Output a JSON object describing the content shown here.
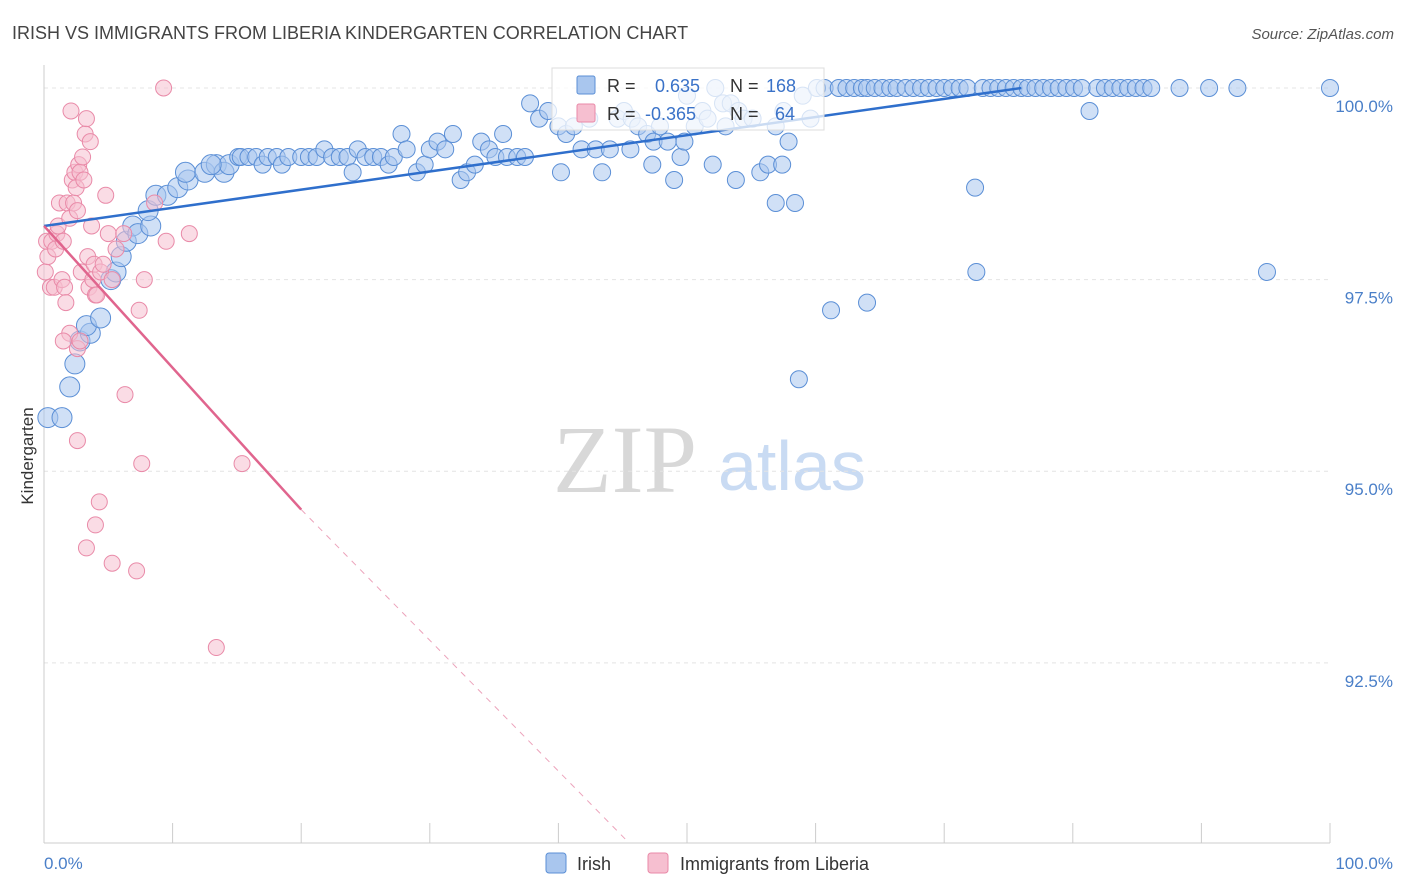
{
  "title": "IRISH VS IMMIGRANTS FROM LIBERIA KINDERGARTEN CORRELATION CHART",
  "source": "Source: ZipAtlas.com",
  "watermark": {
    "zip": "ZIP",
    "atlas": "atlas"
  },
  "colors": {
    "irish_fill": "#a9c6ee",
    "irish_stroke": "#5b8fd6",
    "irish_line": "#2f6fcc",
    "liberia_fill": "#f6bfd0",
    "liberia_stroke": "#e98aa8",
    "liberia_line": "#e0658e",
    "grid": "#e4e4e4",
    "axis": "#cccccc"
  },
  "stats": {
    "irish": {
      "r_label": "R =",
      "r_value": "0.635",
      "n_label": "N =",
      "n_value": "168"
    },
    "liberia": {
      "r_label": "R =",
      "r_value": "-0.365",
      "n_label": "N =",
      "n_value": "64"
    }
  },
  "chart_data": {
    "type": "scatter",
    "title": "IRISH VS IMMIGRANTS FROM LIBERIA KINDERGARTEN CORRELATION CHART",
    "ylabel": "Kindergarten",
    "xlabel": "",
    "xlim": [
      0,
      100
    ],
    "ylim": [
      90.15,
      100.3
    ],
    "x_tick_labels": [
      {
        "value": 0,
        "label": "0.0%"
      },
      {
        "value": 100,
        "label": "100.0%"
      }
    ],
    "x_minor_ticks": [
      10,
      20,
      30,
      40,
      50,
      60,
      70,
      80,
      90,
      100
    ],
    "y_ticks": [
      {
        "value": 100,
        "label": "100.0%"
      },
      {
        "value": 97.5,
        "label": "97.5%"
      },
      {
        "value": 95,
        "label": "95.0%"
      },
      {
        "value": 92.5,
        "label": "92.5%"
      }
    ],
    "legend": [
      "Irish",
      "Immigrants from Liberia"
    ],
    "series": [
      {
        "name": "Irish",
        "r": 0.635,
        "n": 168,
        "trend": {
          "x": [
            0,
            76
          ],
          "y": [
            98.2,
            100.0
          ]
        },
        "points": [
          [
            0.3,
            95.7
          ],
          [
            1.4,
            95.7
          ],
          [
            2.0,
            96.1
          ],
          [
            2.4,
            96.4
          ],
          [
            2.8,
            96.7
          ],
          [
            3.6,
            96.8
          ],
          [
            3.3,
            96.9
          ],
          [
            4.4,
            97.0
          ],
          [
            5.2,
            97.5
          ],
          [
            5.6,
            97.6
          ],
          [
            6.0,
            97.8
          ],
          [
            6.4,
            98.0
          ],
          [
            6.9,
            98.2
          ],
          [
            7.3,
            98.1
          ],
          [
            8.3,
            98.2
          ],
          [
            8.1,
            98.4
          ],
          [
            8.7,
            98.6
          ],
          [
            9.6,
            98.6
          ],
          [
            10.4,
            98.7
          ],
          [
            11.2,
            98.8
          ],
          [
            11.0,
            98.9
          ],
          [
            12.5,
            98.9
          ],
          [
            13.4,
            99.0
          ],
          [
            14.0,
            98.9
          ],
          [
            14.4,
            99.0
          ],
          [
            13.0,
            99.0
          ],
          [
            15.1,
            99.1
          ],
          [
            15.3,
            99.1
          ],
          [
            15.9,
            99.1
          ],
          [
            16.5,
            99.1
          ],
          [
            17.0,
            99.0
          ],
          [
            17.4,
            99.1
          ],
          [
            18.1,
            99.1
          ],
          [
            18.5,
            99.0
          ],
          [
            19.0,
            99.1
          ],
          [
            20.0,
            99.1
          ],
          [
            20.6,
            99.1
          ],
          [
            21.2,
            99.1
          ],
          [
            21.8,
            99.2
          ],
          [
            22.4,
            99.1
          ],
          [
            23.0,
            99.1
          ],
          [
            23.6,
            99.1
          ],
          [
            24.0,
            98.9
          ],
          [
            24.4,
            99.2
          ],
          [
            25.0,
            99.1
          ],
          [
            25.6,
            99.1
          ],
          [
            26.2,
            99.1
          ],
          [
            26.8,
            99.0
          ],
          [
            27.2,
            99.1
          ],
          [
            27.8,
            99.4
          ],
          [
            28.2,
            99.2
          ],
          [
            29.0,
            98.9
          ],
          [
            29.6,
            99.0
          ],
          [
            30.0,
            99.2
          ],
          [
            30.6,
            99.3
          ],
          [
            31.2,
            99.2
          ],
          [
            31.8,
            99.4
          ],
          [
            32.4,
            98.8
          ],
          [
            32.9,
            98.9
          ],
          [
            33.5,
            99.0
          ],
          [
            34.0,
            99.3
          ],
          [
            34.6,
            99.2
          ],
          [
            35.1,
            99.1
          ],
          [
            35.7,
            99.4
          ],
          [
            36.0,
            99.1
          ],
          [
            36.8,
            99.1
          ],
          [
            37.4,
            99.1
          ],
          [
            37.8,
            99.8
          ],
          [
            38.5,
            99.6
          ],
          [
            39.2,
            99.7
          ],
          [
            40.0,
            99.5
          ],
          [
            40.6,
            99.4
          ],
          [
            41.2,
            99.5
          ],
          [
            41.8,
            99.2
          ],
          [
            42.4,
            99.6
          ],
          [
            42.9,
            99.2
          ],
          [
            43.4,
            98.9
          ],
          [
            44.0,
            99.2
          ],
          [
            44.6,
            99.6
          ],
          [
            45.1,
            99.7
          ],
          [
            45.7,
            99.6
          ],
          [
            46.2,
            99.5
          ],
          [
            46.9,
            99.4
          ],
          [
            47.4,
            99.3
          ],
          [
            47.9,
            99.5
          ],
          [
            48.5,
            99.3
          ],
          [
            49.0,
            98.8
          ],
          [
            49.5,
            99.1
          ],
          [
            50.0,
            99.9
          ],
          [
            50.6,
            99.5
          ],
          [
            51.2,
            99.7
          ],
          [
            51.6,
            99.6
          ],
          [
            52.2,
            100.0
          ],
          [
            52.8,
            99.8
          ],
          [
            53.4,
            99.8
          ],
          [
            54.0,
            99.7
          ],
          [
            54.4,
            99.6
          ],
          [
            55.1,
            99.6
          ],
          [
            55.7,
            98.9
          ],
          [
            56.3,
            99.0
          ],
          [
            56.9,
            99.5
          ],
          [
            57.5,
            99.7
          ],
          [
            57.9,
            99.3
          ],
          [
            58.4,
            98.5
          ],
          [
            59.0,
            99.9
          ],
          [
            59.6,
            99.6
          ],
          [
            60.1,
            100.0
          ],
          [
            60.7,
            100.0
          ],
          [
            61.2,
            97.1
          ],
          [
            61.8,
            100.0
          ],
          [
            62.4,
            100.0
          ],
          [
            63.0,
            100.0
          ],
          [
            63.6,
            100.0
          ],
          [
            64.0,
            100.0
          ],
          [
            64.6,
            100.0
          ],
          [
            65.2,
            100.0
          ],
          [
            65.8,
            100.0
          ],
          [
            66.3,
            100.0
          ],
          [
            67.0,
            100.0
          ],
          [
            67.6,
            100.0
          ],
          [
            68.2,
            100.0
          ],
          [
            68.8,
            100.0
          ],
          [
            69.4,
            100.0
          ],
          [
            70.0,
            100.0
          ],
          [
            70.6,
            100.0
          ],
          [
            71.2,
            100.0
          ],
          [
            71.8,
            100.0
          ],
          [
            72.4,
            98.7
          ],
          [
            73.0,
            100.0
          ],
          [
            73.6,
            100.0
          ],
          [
            74.2,
            100.0
          ],
          [
            74.8,
            100.0
          ],
          [
            75.4,
            100.0
          ],
          [
            76.0,
            100.0
          ],
          [
            76.5,
            100.0
          ],
          [
            77.1,
            100.0
          ],
          [
            77.7,
            100.0
          ],
          [
            78.3,
            100.0
          ],
          [
            78.9,
            100.0
          ],
          [
            79.5,
            100.0
          ],
          [
            80.1,
            100.0
          ],
          [
            80.7,
            100.0
          ],
          [
            81.3,
            99.7
          ],
          [
            81.9,
            100.0
          ],
          [
            82.5,
            100.0
          ],
          [
            83.1,
            100.0
          ],
          [
            83.7,
            100.0
          ],
          [
            84.3,
            100.0
          ],
          [
            84.9,
            100.0
          ],
          [
            85.5,
            100.0
          ],
          [
            86.1,
            100.0
          ],
          [
            88.3,
            100.0
          ],
          [
            90.6,
            100.0
          ],
          [
            92.8,
            100.0
          ],
          [
            95.1,
            97.6
          ],
          [
            100.0,
            100.0
          ],
          [
            56.9,
            98.5
          ],
          [
            52.0,
            99.0
          ],
          [
            53.8,
            98.8
          ],
          [
            57.4,
            99.0
          ],
          [
            58.7,
            96.2
          ],
          [
            72.5,
            97.6
          ],
          [
            64.0,
            97.2
          ],
          [
            45.6,
            99.2
          ],
          [
            40.2,
            98.9
          ],
          [
            47.3,
            99.0
          ],
          [
            49.8,
            99.3
          ],
          [
            53.0,
            99.5
          ]
        ]
      },
      {
        "name": "Immigrants from Liberia",
        "r": -0.365,
        "n": 64,
        "trend": {
          "x": [
            0,
            20
          ],
          "y": [
            98.2,
            94.5
          ]
        },
        "trend_dashed": {
          "x": [
            20,
            45.5
          ],
          "y": [
            94.5,
            90.15
          ]
        },
        "points": [
          [
            0.1,
            97.6
          ],
          [
            0.3,
            97.8
          ],
          [
            0.2,
            98.0
          ],
          [
            0.5,
            97.4
          ],
          [
            0.6,
            98.0
          ],
          [
            0.8,
            97.4
          ],
          [
            0.9,
            97.9
          ],
          [
            1.0,
            98.1
          ],
          [
            1.2,
            98.5
          ],
          [
            1.1,
            98.2
          ],
          [
            1.4,
            97.5
          ],
          [
            1.5,
            98.0
          ],
          [
            1.6,
            97.4
          ],
          [
            1.7,
            97.2
          ],
          [
            1.8,
            98.5
          ],
          [
            2.0,
            98.3
          ],
          [
            2.1,
            99.7
          ],
          [
            2.2,
            98.8
          ],
          [
            2.3,
            98.5
          ],
          [
            2.4,
            98.9
          ],
          [
            2.5,
            98.7
          ],
          [
            2.6,
            98.4
          ],
          [
            2.7,
            99.0
          ],
          [
            2.8,
            98.9
          ],
          [
            2.9,
            97.6
          ],
          [
            3.0,
            99.1
          ],
          [
            3.1,
            98.8
          ],
          [
            3.2,
            99.4
          ],
          [
            3.3,
            99.6
          ],
          [
            3.4,
            97.8
          ],
          [
            3.5,
            97.4
          ],
          [
            3.6,
            99.3
          ],
          [
            3.7,
            98.2
          ],
          [
            3.8,
            97.5
          ],
          [
            3.9,
            97.7
          ],
          [
            4.0,
            97.3
          ],
          [
            4.1,
            97.3
          ],
          [
            4.4,
            97.6
          ],
          [
            4.6,
            97.7
          ],
          [
            4.8,
            98.6
          ],
          [
            5.0,
            98.1
          ],
          [
            5.3,
            97.5
          ],
          [
            5.6,
            97.9
          ],
          [
            6.2,
            98.1
          ],
          [
            7.4,
            97.1
          ],
          [
            7.8,
            97.5
          ],
          [
            8.6,
            98.5
          ],
          [
            9.5,
            98.0
          ],
          [
            2.0,
            96.8
          ],
          [
            1.5,
            96.7
          ],
          [
            2.6,
            96.6
          ],
          [
            2.8,
            96.7
          ],
          [
            6.3,
            96.0
          ],
          [
            2.6,
            95.4
          ],
          [
            7.6,
            95.1
          ],
          [
            15.4,
            95.1
          ],
          [
            4.3,
            94.6
          ],
          [
            4.0,
            94.3
          ],
          [
            3.3,
            94.0
          ],
          [
            5.3,
            93.8
          ],
          [
            7.2,
            93.7
          ],
          [
            13.4,
            92.7
          ],
          [
            11.3,
            98.1
          ],
          [
            9.3,
            100.0
          ]
        ]
      }
    ]
  }
}
